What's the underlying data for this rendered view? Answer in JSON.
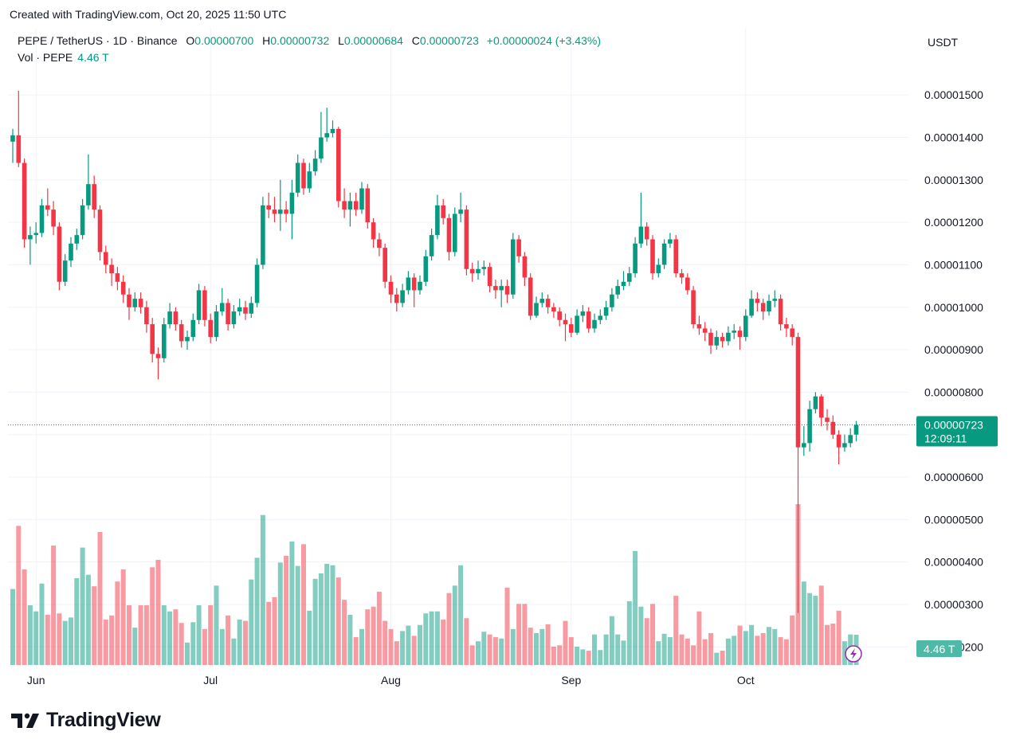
{
  "caption": "Created with TradingView.com, Oct 20, 2025 11:50 UTC",
  "brand": "TradingView",
  "chart_data": {
    "type": "candlestick",
    "title": "PEPE / TetherUS · 1D · Binance",
    "ohlc_header": [
      {
        "key": "O",
        "text": "0.00000700"
      },
      {
        "key": "H",
        "text": "0.00000732"
      },
      {
        "key": "L",
        "text": "0.00000684"
      },
      {
        "key": "C",
        "text": "0.00000723"
      }
    ],
    "change": "+0.00000024 (+3.43%)",
    "volume_title": "Vol · PEPE",
    "volume_header": "4.46 T",
    "currency": "USDT",
    "last_price_label": "0.00000723",
    "countdown": "12:09:11",
    "last_volume_label": "4.46 T",
    "up_color": "#089981",
    "down_color": "#f23645",
    "grid": true,
    "ylim": [
      1.48e-06,
      1.658e-05
    ],
    "yticks": [
      {
        "value": 1.5e-05,
        "label": "0.00001500"
      },
      {
        "value": 1.4e-05,
        "label": "0.00001400"
      },
      {
        "value": 1.3e-05,
        "label": "0.00001300"
      },
      {
        "value": 1.2e-05,
        "label": "0.00001200"
      },
      {
        "value": 1.1e-05,
        "label": "0.00001100"
      },
      {
        "value": 1e-05,
        "label": "0.00001000"
      },
      {
        "value": 9e-06,
        "label": "0.00000900"
      },
      {
        "value": 8e-06,
        "label": "0.00000800"
      },
      {
        "value": 7e-06,
        "label": "0.00000700"
      },
      {
        "value": 6e-06,
        "label": "0.00000600"
      },
      {
        "value": 5e-06,
        "label": "0.00000500"
      },
      {
        "value": 4e-06,
        "label": "0.00000400"
      },
      {
        "value": 3e-06,
        "label": "0.00000300"
      },
      {
        "value": 2e-06,
        "label": "0.00000200"
      }
    ],
    "xticks": [
      {
        "value": 4,
        "label": "Jun"
      },
      {
        "value": 34,
        "label": "Jul"
      },
      {
        "value": 65,
        "label": "Aug"
      },
      {
        "value": 96,
        "label": "Sep"
      },
      {
        "value": 126,
        "label": "Oct"
      }
    ],
    "open": [
      1.39e-05,
      1.405e-05,
      1.34e-05,
      1.16e-05,
      1.17e-05,
      1.175e-05,
      1.24e-05,
      1.23e-05,
      1.19e-05,
      1.06e-05,
      1.11e-05,
      1.15e-05,
      1.17e-05,
      1.24e-05,
      1.29e-05,
      1.23e-05,
      1.13e-05,
      1.1e-05,
      1.08e-05,
      1.06e-05,
      1.03e-05,
      1e-05,
      1.02e-05,
      1e-05,
      9.6e-06,
      8.9e-06,
      8.8e-06,
      9.6e-06,
      9.9e-06,
      9.6e-06,
      9.2e-06,
      9.3e-06,
      9.7e-06,
      1.04e-05,
      9.7e-06,
      9.3e-06,
      9.9e-06,
      1.01e-05,
      9.6e-06,
      9.9e-06,
      1e-05,
      9.85e-06,
      1.01e-05,
      1.1e-05,
      1.24e-05,
      1.23e-05,
      1.22e-05,
      1.23e-05,
      1.22e-05,
      1.27e-05,
      1.34e-05,
      1.28e-05,
      1.32e-05,
      1.35e-05,
      1.4e-05,
      1.41e-05,
      1.42e-05,
      1.25e-05,
      1.23e-05,
      1.25e-05,
      1.23e-05,
      1.28e-05,
      1.2e-05,
      1.16e-05,
      1.14e-05,
      1.06e-05,
      1.03e-05,
      1.01e-05,
      1.04e-05,
      1.07e-05,
      1.04e-05,
      1.06e-05,
      1.12e-05,
      1.17e-05,
      1.24e-05,
      1.21e-05,
      1.13e-05,
      1.22e-05,
      1.23e-05,
      1.09e-05,
      1.08e-05,
      1.09e-05,
      1.095e-05,
      1.05e-05,
      1.04e-05,
      1.05e-05,
      1.03e-05,
      1.16e-05,
      1.12e-05,
      1.07e-05,
      9.8e-06,
      1.01e-05,
      1.02e-05,
      1e-05,
      9.9e-06,
      9.7e-06,
      9.6e-06,
      9.4e-06,
      9.8e-06,
      9.9e-06,
      9.5e-06,
      9.7e-06,
      9.8e-06,
      1e-05,
      1.03e-05,
      1.05e-05,
      1.06e-05,
      1.08e-05,
      1.15e-05,
      1.19e-05,
      1.16e-05,
      1.08e-05,
      1.1e-05,
      1.15e-05,
      1.16e-05,
      1.08e-05,
      1.07e-05,
      1.04e-05,
      9.6e-06,
      9.5e-06,
      9.4e-06,
      9.1e-06,
      9.3e-06,
      9.2e-06,
      9.4e-06,
      9.45e-06,
      9.3e-06,
      9.8e-06,
      1.02e-05,
      1.01e-05,
      9.9e-06,
      1.015e-05,
      1.02e-05,
      9.6e-06,
      9.5e-06,
      9.3e-06,
      6.7e-06,
      6.8e-06,
      7.6e-06,
      7.9e-06,
      7.4e-06,
      7.3e-06,
      7e-06,
      6.7e-06,
      6.8e-06,
      7e-06
    ],
    "high": [
      1.42e-05,
      1.51e-05,
      1.35e-05,
      1.19e-05,
      1.2e-05,
      1.255e-05,
      1.28e-05,
      1.25e-05,
      1.2e-05,
      1.125e-05,
      1.165e-05,
      1.185e-05,
      1.255e-05,
      1.36e-05,
      1.31e-05,
      1.24e-05,
      1.145e-05,
      1.115e-05,
      1.095e-05,
      1.075e-05,
      1.045e-05,
      1.035e-05,
      1.035e-05,
      1.015e-05,
      9.75e-06,
      9.05e-06,
      9.75e-06,
      1.01e-05,
      1e-05,
      9.7e-06,
      9.45e-06,
      9.85e-06,
      1.055e-05,
      1.05e-05,
      9.85e-06,
      1.005e-05,
      1.045e-05,
      1.02e-05,
      1.005e-05,
      1.02e-05,
      1.015e-05,
      1.025e-05,
      1.115e-05,
      1.26e-05,
      1.27e-05,
      1.26e-05,
      1.3e-05,
      1.25e-05,
      1.3e-05,
      1.36e-05,
      1.35e-05,
      1.34e-05,
      1.37e-05,
      1.46e-05,
      1.47e-05,
      1.44e-05,
      1.425e-05,
      1.28e-05,
      1.27e-05,
      1.27e-05,
      1.295e-05,
      1.29e-05,
      1.21e-05,
      1.175e-05,
      1.15e-05,
      1.075e-05,
      1.045e-05,
      1.055e-05,
      1.085e-05,
      1.08e-05,
      1.075e-05,
      1.135e-05,
      1.185e-05,
      1.265e-05,
      1.255e-05,
      1.22e-05,
      1.235e-05,
      1.27e-05,
      1.24e-05,
      1.105e-05,
      1.11e-05,
      1.11e-05,
      1.105e-05,
      1.065e-05,
      1.065e-05,
      1.065e-05,
      1.175e-05,
      1.17e-05,
      1.13e-05,
      1.08e-05,
      1.025e-05,
      1.035e-05,
      1.03e-05,
      1.01e-05,
      1e-05,
      9.85e-06,
      9.75e-06,
      9.95e-06,
      1.005e-05,
      1e-05,
      9.85e-06,
      9.95e-06,
      1.015e-05,
      1.045e-05,
      1.065e-05,
      1.085e-05,
      1.095e-05,
      1.165e-05,
      1.27e-05,
      1.2e-05,
      1.17e-05,
      1.115e-05,
      1.16e-05,
      1.175e-05,
      1.17e-05,
      1.09e-05,
      1.08e-05,
      1.05e-05,
      9.8e-06,
      9.65e-06,
      9.5e-06,
      9.45e-06,
      9.4e-06,
      9.55e-06,
      9.6e-06,
      9.55e-06,
      9.95e-06,
      1.04e-05,
      1.035e-05,
      1.02e-05,
      1.03e-05,
      1.04e-05,
      1.03e-05,
      9.75e-06,
      9.6e-06,
      9.4e-06,
      7.2e-06,
      7.8e-06,
      8e-06,
      7.95e-06,
      7.6e-06,
      7.45e-06,
      7.1e-06,
      7e-06,
      7.15e-06,
      7.32e-06
    ],
    "low": [
      1.34e-05,
      1.33e-05,
      1.14e-05,
      1.1e-05,
      1.15e-05,
      1.165e-05,
      1.215e-05,
      1.17e-05,
      1.04e-05,
      1.05e-05,
      1.095e-05,
      1.135e-05,
      1.16e-05,
      1.23e-05,
      1.21e-05,
      1.11e-05,
      1.08e-05,
      1.05e-05,
      1.04e-05,
      1.01e-05,
      9.7e-06,
      9.9e-06,
      9.85e-06,
      9.4e-06,
      8.7e-06,
      8.3e-06,
      8.7e-06,
      9.5e-06,
      9.45e-06,
      9.05e-06,
      9e-06,
      9.2e-06,
      9.6e-06,
      9.55e-06,
      9.15e-06,
      9.2e-06,
      9.8e-06,
      9.45e-06,
      9.5e-06,
      9.8e-06,
      9.7e-06,
      9.75e-06,
      1e-05,
      1.09e-05,
      1.21e-05,
      1.2e-05,
      1.18e-05,
      1.2e-05,
      1.16e-05,
      1.26e-05,
      1.265e-05,
      1.27e-05,
      1.31e-05,
      1.34e-05,
      1.39e-05,
      1.4e-05,
      1.235e-05,
      1.21e-05,
      1.19e-05,
      1.215e-05,
      1.22e-05,
      1.185e-05,
      1.14e-05,
      1.12e-05,
      1.045e-05,
      1.01e-05,
      9.9e-06,
      1e-05,
      1.03e-05,
      1e-05,
      1.03e-05,
      1.05e-05,
      1.11e-05,
      1.16e-05,
      1.195e-05,
      1.11e-05,
      1.12e-05,
      1.2e-05,
      1.075e-05,
      1.06e-05,
      1.065e-05,
      1.075e-05,
      1.035e-05,
      1.02e-05,
      1e-05,
      1.01e-05,
      1.02e-05,
      1.105e-05,
      1.05e-05,
      9.7e-06,
      9.75e-06,
      1e-05,
      9.85e-06,
      9.75e-06,
      9.55e-06,
      9.2e-06,
      9.3e-06,
      9.35e-06,
      9.65e-06,
      9.4e-06,
      9.4e-06,
      9.6e-06,
      9.7e-06,
      9.9e-06,
      1.02e-05,
      1.04e-05,
      1.05e-05,
      1.07e-05,
      1.14e-05,
      1.145e-05,
      1.065e-05,
      1.07e-05,
      1.09e-05,
      1.14e-05,
      1.07e-05,
      1.055e-05,
      1.03e-05,
      9.5e-06,
      9.35e-06,
      9.2e-06,
      8.9e-06,
      9e-06,
      9.05e-06,
      9.1e-06,
      9.25e-06,
      9e-06,
      9.2e-06,
      9.75e-06,
      9.9e-06,
      9.7e-06,
      9.8e-06,
      1e-05,
      9.45e-06,
      9.3e-06,
      9.1e-06,
      2.8e-06,
      6.5e-06,
      6.6e-06,
      7.5e-06,
      7.2e-06,
      7.1e-06,
      6.9e-06,
      6.3e-06,
      6.6e-06,
      6.7e-06,
      6.84e-06
    ],
    "close": [
      1.405e-05,
      1.34e-05,
      1.16e-05,
      1.17e-05,
      1.175e-05,
      1.24e-05,
      1.23e-05,
      1.19e-05,
      1.06e-05,
      1.11e-05,
      1.15e-05,
      1.17e-05,
      1.24e-05,
      1.29e-05,
      1.23e-05,
      1.13e-05,
      1.1e-05,
      1.08e-05,
      1.06e-05,
      1.03e-05,
      1e-05,
      1.02e-05,
      1e-05,
      9.6e-06,
      8.9e-06,
      8.8e-06,
      9.6e-06,
      9.9e-06,
      9.6e-06,
      9.2e-06,
      9.3e-06,
      9.7e-06,
      1.04e-05,
      9.7e-06,
      9.3e-06,
      9.9e-06,
      1.01e-05,
      9.6e-06,
      9.9e-06,
      1e-05,
      9.85e-06,
      1.01e-05,
      1.1e-05,
      1.24e-05,
      1.23e-05,
      1.22e-05,
      1.23e-05,
      1.22e-05,
      1.27e-05,
      1.34e-05,
      1.28e-05,
      1.32e-05,
      1.35e-05,
      1.4e-05,
      1.41e-05,
      1.42e-05,
      1.25e-05,
      1.23e-05,
      1.25e-05,
      1.23e-05,
      1.28e-05,
      1.2e-05,
      1.16e-05,
      1.14e-05,
      1.06e-05,
      1.03e-05,
      1.01e-05,
      1.04e-05,
      1.07e-05,
      1.04e-05,
      1.06e-05,
      1.12e-05,
      1.17e-05,
      1.24e-05,
      1.21e-05,
      1.13e-05,
      1.22e-05,
      1.23e-05,
      1.09e-05,
      1.08e-05,
      1.09e-05,
      1.095e-05,
      1.05e-05,
      1.04e-05,
      1.05e-05,
      1.03e-05,
      1.16e-05,
      1.12e-05,
      1.07e-05,
      9.8e-06,
      1.01e-05,
      1.02e-05,
      1e-05,
      9.9e-06,
      9.7e-06,
      9.6e-06,
      9.4e-06,
      9.8e-06,
      9.9e-06,
      9.5e-06,
      9.7e-06,
      9.8e-06,
      1e-05,
      1.03e-05,
      1.05e-05,
      1.06e-05,
      1.08e-05,
      1.15e-05,
      1.19e-05,
      1.16e-05,
      1.08e-05,
      1.1e-05,
      1.15e-05,
      1.16e-05,
      1.08e-05,
      1.07e-05,
      1.04e-05,
      9.6e-06,
      9.5e-06,
      9.4e-06,
      9.1e-06,
      9.3e-06,
      9.2e-06,
      9.4e-06,
      9.45e-06,
      9.3e-06,
      9.8e-06,
      1.02e-05,
      1.01e-05,
      9.9e-06,
      1.015e-05,
      1.02e-05,
      9.6e-06,
      9.5e-06,
      9.3e-06,
      6.7e-06,
      6.8e-06,
      7.6e-06,
      7.9e-06,
      7.4e-06,
      7.3e-06,
      7e-06,
      6.7e-06,
      6.8e-06,
      6.99e-06,
      7.23e-06
    ],
    "volume": [
      11.2,
      20.5,
      14.1,
      8.8,
      7.9,
      12.0,
      7.4,
      17.6,
      7.6,
      6.5,
      7.0,
      12.8,
      17.3,
      13.3,
      11.6,
      19.6,
      6.7,
      7.3,
      12.3,
      14.1,
      8.8,
      5.5,
      8.8,
      8.8,
      14.4,
      15.5,
      8.8,
      7.9,
      8.2,
      6.2,
      3.3,
      6.3,
      8.8,
      5.3,
      8.8,
      11.7,
      5.3,
      7.3,
      3.9,
      6.7,
      6.5,
      12.6,
      15.8,
      22.1,
      9.3,
      10.0,
      15.1,
      16.1,
      18.2,
      14.6,
      17.8,
      8.0,
      12.7,
      13.5,
      14.9,
      14.7,
      12.9,
      9.6,
      7.4,
      4.1,
      5.3,
      8.2,
      8.6,
      10.8,
      6.5,
      5.3,
      3.5,
      5.0,
      5.8,
      4.3,
      5.9,
      7.6,
      7.9,
      7.9,
      6.7,
      10.6,
      11.7,
      14.7,
      6.9,
      2.9,
      3.5,
      4.9,
      4.5,
      4.1,
      3.9,
      11.4,
      5.3,
      9.0,
      9.0,
      5.5,
      4.7,
      5.3,
      6.0,
      2.7,
      2.9,
      6.5,
      4.1,
      2.7,
      2.3,
      2.1,
      4.5,
      2.2,
      4.5,
      7.2,
      4.5,
      3.6,
      9.4,
      16.8,
      8.6,
      6.9,
      9.0,
      3.5,
      4.6,
      4.1,
      10.2,
      4.5,
      3.9,
      2.9,
      7.9,
      3.8,
      4.7,
      1.8,
      2.1,
      3.9,
      4.3,
      5.8,
      5.0,
      5.9,
      4.3,
      4.7,
      5.6,
      5.3,
      4.1,
      3.8,
      7.3,
      23.7,
      12.3,
      10.6,
      10.2,
      11.7,
      5.9,
      6.1,
      8.0,
      3.5,
      4.5,
      4.46
    ]
  }
}
